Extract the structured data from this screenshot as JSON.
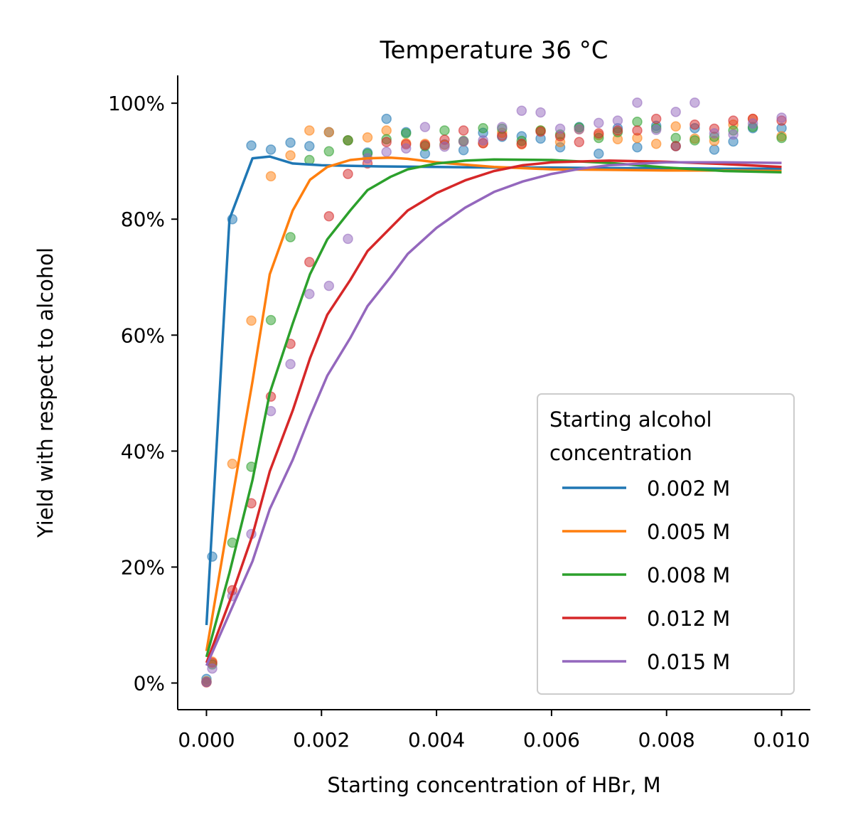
{
  "chart_data": {
    "type": "line+scatter",
    "title": "Temperature 36 °C",
    "xlabel": "Starting concentration of HBr, M",
    "ylabel": "Yield with respect to alcohol",
    "xlim": [
      -0.0005,
      0.0105
    ],
    "ylim": [
      -4.6,
      104.8
    ],
    "xticks": [
      0.0,
      0.002,
      0.004,
      0.006,
      0.008,
      0.01
    ],
    "xtick_labels": [
      "0.000",
      "0.002",
      "0.004",
      "0.006",
      "0.008",
      "0.010"
    ],
    "yticks": [
      0,
      20,
      40,
      60,
      80,
      100
    ],
    "ytick_labels": [
      "0%",
      "20%",
      "40%",
      "60%",
      "80%",
      "100%"
    ],
    "grid": false,
    "legend": {
      "title_lines": [
        "Starting alcohol",
        "concentration"
      ],
      "placement": "lower-right"
    },
    "series": [
      {
        "name": "0.002 M",
        "color": "#1f77b4",
        "line": [
          [
            0.0,
            10.0
          ],
          [
            0.0004,
            80.0
          ],
          [
            0.0008,
            90.5
          ],
          [
            0.0011,
            90.8
          ],
          [
            0.0015,
            89.6
          ],
          [
            0.002,
            89.3
          ],
          [
            0.003,
            89.1
          ],
          [
            0.004,
            89.0
          ],
          [
            0.005,
            88.9
          ],
          [
            0.006,
            88.9
          ],
          [
            0.007,
            88.8
          ],
          [
            0.008,
            88.8
          ],
          [
            0.009,
            88.7
          ],
          [
            0.01,
            88.7
          ]
        ],
        "points": [
          [
            0.0,
            0.7
          ],
          [
            0.0001,
            21.8
          ],
          [
            0.00045,
            80.0
          ],
          [
            0.00078,
            92.7
          ],
          [
            0.00112,
            92.0
          ],
          [
            0.00146,
            93.2
          ],
          [
            0.00179,
            92.6
          ],
          [
            0.00213,
            95.0
          ],
          [
            0.00246,
            93.6
          ],
          [
            0.0028,
            91.5
          ],
          [
            0.00313,
            97.3
          ],
          [
            0.00347,
            95.0
          ],
          [
            0.0038,
            91.3
          ],
          [
            0.00414,
            92.9
          ],
          [
            0.00447,
            91.9
          ],
          [
            0.00481,
            94.9
          ],
          [
            0.00514,
            94.2
          ],
          [
            0.00548,
            94.3
          ],
          [
            0.00581,
            93.9
          ],
          [
            0.00615,
            92.4
          ],
          [
            0.00648,
            95.9
          ],
          [
            0.00682,
            91.3
          ],
          [
            0.00715,
            95.7
          ],
          [
            0.00749,
            92.4
          ],
          [
            0.00782,
            96.1
          ],
          [
            0.00816,
            92.6
          ],
          [
            0.00849,
            95.7
          ],
          [
            0.00883,
            92.0
          ],
          [
            0.00916,
            93.4
          ],
          [
            0.0095,
            95.7
          ],
          [
            0.01,
            95.7
          ]
        ]
      },
      {
        "name": "0.005 M",
        "color": "#ff7f0e",
        "line": [
          [
            0.0,
            5.5
          ],
          [
            0.0004,
            29.0
          ],
          [
            0.0008,
            52.0
          ],
          [
            0.0011,
            70.5
          ],
          [
            0.0015,
            81.5
          ],
          [
            0.0018,
            86.8
          ],
          [
            0.0021,
            89.0
          ],
          [
            0.0025,
            90.2
          ],
          [
            0.0028,
            90.5
          ],
          [
            0.0032,
            90.6
          ],
          [
            0.0035,
            90.4
          ],
          [
            0.004,
            89.8
          ],
          [
            0.005,
            89.0
          ],
          [
            0.006,
            88.6
          ],
          [
            0.007,
            88.5
          ],
          [
            0.008,
            88.4
          ],
          [
            0.009,
            88.4
          ],
          [
            0.01,
            88.3
          ]
        ],
        "points": [
          [
            0.0,
            0.3
          ],
          [
            0.0001,
            3.7
          ],
          [
            0.00045,
            37.8
          ],
          [
            0.00078,
            62.5
          ],
          [
            0.00112,
            87.4
          ],
          [
            0.00146,
            91.0
          ],
          [
            0.00179,
            95.3
          ],
          [
            0.00213,
            95.0
          ],
          [
            0.00246,
            93.6
          ],
          [
            0.0028,
            94.1
          ],
          [
            0.00313,
            95.3
          ],
          [
            0.00347,
            93.1
          ],
          [
            0.0038,
            93.0
          ],
          [
            0.00414,
            92.8
          ],
          [
            0.00447,
            93.4
          ],
          [
            0.00481,
            93.1
          ],
          [
            0.00514,
            94.9
          ],
          [
            0.00548,
            92.9
          ],
          [
            0.00581,
            95.3
          ],
          [
            0.00615,
            93.3
          ],
          [
            0.00648,
            95.5
          ],
          [
            0.00682,
            94.5
          ],
          [
            0.00715,
            93.8
          ],
          [
            0.00749,
            94.0
          ],
          [
            0.00782,
            93.0
          ],
          [
            0.00816,
            96.0
          ],
          [
            0.00849,
            93.9
          ],
          [
            0.00883,
            93.5
          ],
          [
            0.00916,
            96.3
          ],
          [
            0.0095,
            97.3
          ],
          [
            0.01,
            94.3
          ]
        ]
      },
      {
        "name": "0.008 M",
        "color": "#2ca02c",
        "line": [
          [
            0.0,
            4.5
          ],
          [
            0.0004,
            19.0
          ],
          [
            0.0008,
            35.0
          ],
          [
            0.0011,
            50.0
          ],
          [
            0.0015,
            62.0
          ],
          [
            0.0018,
            70.5
          ],
          [
            0.0021,
            76.5
          ],
          [
            0.0025,
            81.5
          ],
          [
            0.0028,
            85.0
          ],
          [
            0.0032,
            87.3
          ],
          [
            0.0035,
            88.6
          ],
          [
            0.004,
            89.6
          ],
          [
            0.0045,
            90.1
          ],
          [
            0.005,
            90.3
          ],
          [
            0.006,
            90.2
          ],
          [
            0.007,
            89.7
          ],
          [
            0.008,
            88.9
          ],
          [
            0.009,
            88.3
          ],
          [
            0.01,
            88.1
          ]
        ],
        "points": [
          [
            0.0,
            0.2
          ],
          [
            0.0001,
            3.2
          ],
          [
            0.00045,
            24.2
          ],
          [
            0.00078,
            37.3
          ],
          [
            0.00112,
            62.6
          ],
          [
            0.00146,
            76.9
          ],
          [
            0.00179,
            90.2
          ],
          [
            0.00213,
            91.7
          ],
          [
            0.00246,
            93.6
          ],
          [
            0.0028,
            91.3
          ],
          [
            0.00313,
            93.8
          ],
          [
            0.00347,
            94.8
          ],
          [
            0.0038,
            92.6
          ],
          [
            0.00414,
            95.3
          ],
          [
            0.00447,
            93.5
          ],
          [
            0.00481,
            95.7
          ],
          [
            0.00514,
            95.6
          ],
          [
            0.00548,
            93.5
          ],
          [
            0.00581,
            95.3
          ],
          [
            0.00615,
            94.6
          ],
          [
            0.00648,
            95.8
          ],
          [
            0.00682,
            94.0
          ],
          [
            0.00715,
            95.0
          ],
          [
            0.00749,
            96.8
          ],
          [
            0.00782,
            95.7
          ],
          [
            0.00816,
            94.0
          ],
          [
            0.00849,
            93.6
          ],
          [
            0.00883,
            94.2
          ],
          [
            0.00916,
            95.3
          ],
          [
            0.0095,
            95.9
          ],
          [
            0.01,
            94.0
          ]
        ]
      },
      {
        "name": "0.012 M",
        "color": "#d62728",
        "line": [
          [
            0.0,
            3.5
          ],
          [
            0.0004,
            14.0
          ],
          [
            0.0008,
            25.5
          ],
          [
            0.0011,
            36.5
          ],
          [
            0.0015,
            47.0
          ],
          [
            0.0018,
            56.0
          ],
          [
            0.0021,
            63.5
          ],
          [
            0.0025,
            69.5
          ],
          [
            0.0028,
            74.5
          ],
          [
            0.0032,
            78.5
          ],
          [
            0.0035,
            81.5
          ],
          [
            0.004,
            84.5
          ],
          [
            0.0045,
            86.7
          ],
          [
            0.005,
            88.3
          ],
          [
            0.0055,
            89.3
          ],
          [
            0.006,
            89.8
          ],
          [
            0.007,
            90.1
          ],
          [
            0.008,
            89.9
          ],
          [
            0.009,
            89.5
          ],
          [
            0.01,
            89.0
          ]
        ],
        "points": [
          [
            0.0,
            0.1
          ],
          [
            0.0001,
            3.5
          ],
          [
            0.00045,
            16.0
          ],
          [
            0.00078,
            31.0
          ],
          [
            0.00112,
            49.4
          ],
          [
            0.00146,
            58.5
          ],
          [
            0.00179,
            72.6
          ],
          [
            0.00213,
            80.5
          ],
          [
            0.00246,
            87.8
          ],
          [
            0.0028,
            89.6
          ],
          [
            0.00313,
            93.3
          ],
          [
            0.00347,
            92.9
          ],
          [
            0.0038,
            92.8
          ],
          [
            0.00414,
            93.7
          ],
          [
            0.00447,
            95.3
          ],
          [
            0.00481,
            93.1
          ],
          [
            0.00514,
            94.4
          ],
          [
            0.00548,
            93.0
          ],
          [
            0.00581,
            95.1
          ],
          [
            0.00615,
            94.3
          ],
          [
            0.00648,
            93.3
          ],
          [
            0.00682,
            94.8
          ],
          [
            0.00715,
            95.3
          ],
          [
            0.00749,
            95.3
          ],
          [
            0.00782,
            97.3
          ],
          [
            0.00816,
            92.6
          ],
          [
            0.00849,
            96.3
          ],
          [
            0.00883,
            95.6
          ],
          [
            0.00916,
            97.0
          ],
          [
            0.0095,
            97.3
          ],
          [
            0.01,
            97.0
          ]
        ]
      },
      {
        "name": "0.015 M",
        "color": "#9467bd",
        "line": [
          [
            0.0,
            3.0
          ],
          [
            0.0004,
            12.0
          ],
          [
            0.0008,
            21.0
          ],
          [
            0.0011,
            30.0
          ],
          [
            0.0015,
            38.5
          ],
          [
            0.0018,
            46.0
          ],
          [
            0.0021,
            53.0
          ],
          [
            0.0025,
            59.5
          ],
          [
            0.0028,
            65.0
          ],
          [
            0.0032,
            70.0
          ],
          [
            0.0035,
            74.0
          ],
          [
            0.004,
            78.5
          ],
          [
            0.0045,
            82.0
          ],
          [
            0.005,
            84.7
          ],
          [
            0.0055,
            86.5
          ],
          [
            0.006,
            87.8
          ],
          [
            0.0065,
            88.7
          ],
          [
            0.007,
            89.3
          ],
          [
            0.008,
            89.8
          ],
          [
            0.009,
            89.8
          ],
          [
            0.01,
            89.7
          ]
        ],
        "points": [
          [
            0.0,
            0.2
          ],
          [
            0.0001,
            2.5
          ],
          [
            0.00045,
            15.0
          ],
          [
            0.00078,
            25.7
          ],
          [
            0.00112,
            46.9
          ],
          [
            0.00146,
            55.0
          ],
          [
            0.00179,
            67.1
          ],
          [
            0.00213,
            68.5
          ],
          [
            0.00246,
            76.6
          ],
          [
            0.0028,
            90.5
          ],
          [
            0.00313,
            91.6
          ],
          [
            0.00347,
            92.2
          ],
          [
            0.0038,
            95.9
          ],
          [
            0.00414,
            92.5
          ],
          [
            0.00447,
            93.4
          ],
          [
            0.00481,
            93.6
          ],
          [
            0.00514,
            95.9
          ],
          [
            0.00548,
            98.7
          ],
          [
            0.00581,
            98.4
          ],
          [
            0.00615,
            95.6
          ],
          [
            0.00648,
            95.5
          ],
          [
            0.00682,
            96.6
          ],
          [
            0.00715,
            97.0
          ],
          [
            0.00749,
            100.1
          ],
          [
            0.00782,
            95.4
          ],
          [
            0.00816,
            98.5
          ],
          [
            0.00849,
            100.1
          ],
          [
            0.00883,
            94.8
          ],
          [
            0.00916,
            94.6
          ],
          [
            0.0095,
            96.5
          ],
          [
            0.01,
            97.5
          ]
        ]
      }
    ]
  }
}
